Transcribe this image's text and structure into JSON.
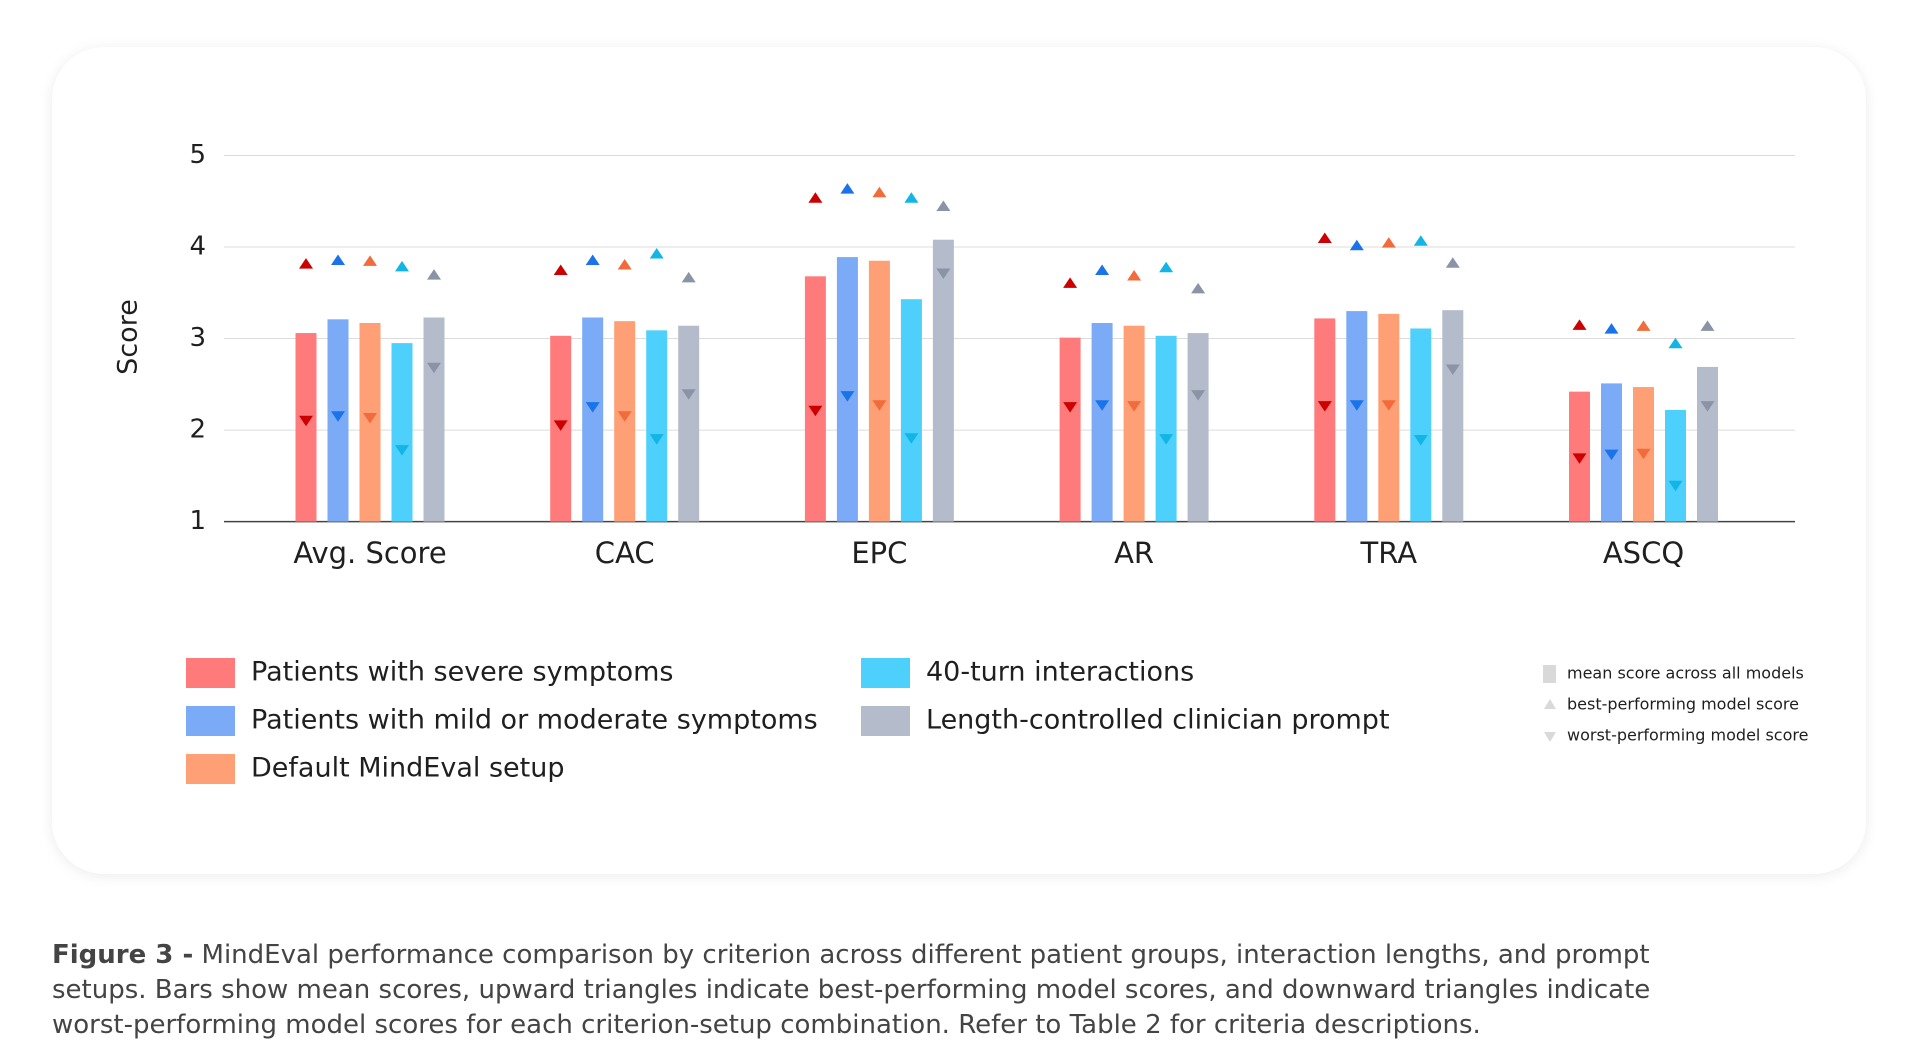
{
  "chart_data": {
    "type": "bar",
    "y_label": "Score",
    "categories": [
      "Avg. Score",
      "CAC",
      "EPC",
      "AR",
      "TRA",
      "ASCQ"
    ],
    "ylim": [
      1,
      5
    ],
    "yticks": [
      1,
      2,
      3,
      4,
      5
    ],
    "grid": true,
    "series": [
      {
        "name": "Patients with severe symptoms",
        "color": "#ff7b7b",
        "marker_color": "#cc0000",
        "values": [
          3.06,
          3.03,
          3.68,
          3.01,
          3.22,
          2.42
        ],
        "best": [
          3.81,
          3.74,
          4.53,
          3.6,
          4.09,
          3.14
        ],
        "worst": [
          2.11,
          2.06,
          2.22,
          2.26,
          2.27,
          1.7
        ]
      },
      {
        "name": "Patients with mild or moderate symptoms",
        "color": "#7baaf7",
        "marker_color": "#1a73e8",
        "values": [
          3.21,
          3.23,
          3.89,
          3.17,
          3.3,
          2.51
        ],
        "best": [
          3.85,
          3.85,
          4.63,
          3.74,
          4.01,
          3.1
        ],
        "worst": [
          2.16,
          2.26,
          2.38,
          2.28,
          2.28,
          1.74
        ]
      },
      {
        "name": "Default MindEval setup",
        "color": "#ff9f75",
        "marker_color": "#f26b3a",
        "values": [
          3.17,
          3.19,
          3.85,
          3.14,
          3.27,
          2.47
        ],
        "best": [
          3.84,
          3.8,
          4.59,
          3.68,
          4.04,
          3.13
        ],
        "worst": [
          2.14,
          2.16,
          2.28,
          2.27,
          2.28,
          1.75
        ]
      },
      {
        "name": "40-turn interactions",
        "color": "#4dd0fb",
        "marker_color": "#12b5e5",
        "values": [
          2.95,
          3.09,
          3.43,
          3.03,
          3.11,
          2.22
        ],
        "best": [
          3.78,
          3.92,
          4.53,
          3.77,
          4.06,
          2.94
        ],
        "worst": [
          1.79,
          1.91,
          1.92,
          1.91,
          1.9,
          1.4
        ]
      },
      {
        "name": "Length-controlled clinician prompt",
        "color": "#b4bccb",
        "marker_color": "#8a94a6",
        "values": [
          3.23,
          3.14,
          4.08,
          3.06,
          3.31,
          2.69
        ],
        "best": [
          3.69,
          3.66,
          4.44,
          3.54,
          3.82,
          3.13
        ],
        "worst": [
          2.69,
          2.4,
          3.72,
          2.39,
          2.67,
          2.27
        ]
      }
    ],
    "marker_legend": [
      "mean score across all models",
      "best-performing model score",
      "worst-performing model score"
    ],
    "caption_label": "Figure 3 -",
    "caption": "MindEval performance comparison by criterion across different patient groups, interaction lengths, and prompt setups. Bars show mean scores, upward triangles indicate best-performing model scores, and downward triangles indicate worst-performing model scores for each criterion-setup combination. Refer to Table 2 for criteria descriptions."
  }
}
